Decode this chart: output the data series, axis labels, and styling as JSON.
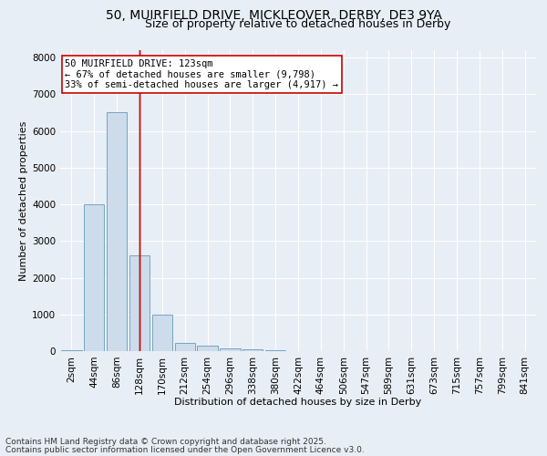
{
  "title_line1": "50, MUIRFIELD DRIVE, MICKLEOVER, DERBY, DE3 9YA",
  "title_line2": "Size of property relative to detached houses in Derby",
  "xlabel": "Distribution of detached houses by size in Derby",
  "ylabel": "Number of detached properties",
  "categories": [
    "2sqm",
    "44sqm",
    "86sqm",
    "128sqm",
    "170sqm",
    "212sqm",
    "254sqm",
    "296sqm",
    "338sqm",
    "380sqm",
    "422sqm",
    "464sqm",
    "506sqm",
    "547sqm",
    "589sqm",
    "631sqm",
    "673sqm",
    "715sqm",
    "757sqm",
    "799sqm",
    "841sqm"
  ],
  "values": [
    20,
    4000,
    6500,
    2600,
    1000,
    220,
    140,
    80,
    50,
    20,
    5,
    0,
    0,
    0,
    0,
    0,
    0,
    0,
    0,
    0,
    0
  ],
  "bar_color": "#cddceb",
  "bar_edge_color": "#6699bb",
  "vline_x_index": 3,
  "vline_color": "#cc0000",
  "annotation_text": "50 MUIRFIELD DRIVE: 123sqm\n← 67% of detached houses are smaller (9,798)\n33% of semi-detached houses are larger (4,917) →",
  "annotation_box_color": "#ffffff",
  "annotation_box_edge": "#cc0000",
  "ylim": [
    0,
    8200
  ],
  "yticks": [
    0,
    1000,
    2000,
    3000,
    4000,
    5000,
    6000,
    7000,
    8000
  ],
  "footer_line1": "Contains HM Land Registry data © Crown copyright and database right 2025.",
  "footer_line2": "Contains public sector information licensed under the Open Government Licence v3.0.",
  "bg_color": "#e8eef5",
  "plot_bg_color": "#e8eef5",
  "grid_color": "#ffffff",
  "title_fontsize": 10,
  "subtitle_fontsize": 9,
  "axis_label_fontsize": 8,
  "tick_fontsize": 7.5,
  "annotation_fontsize": 7.5,
  "footer_fontsize": 6.5
}
